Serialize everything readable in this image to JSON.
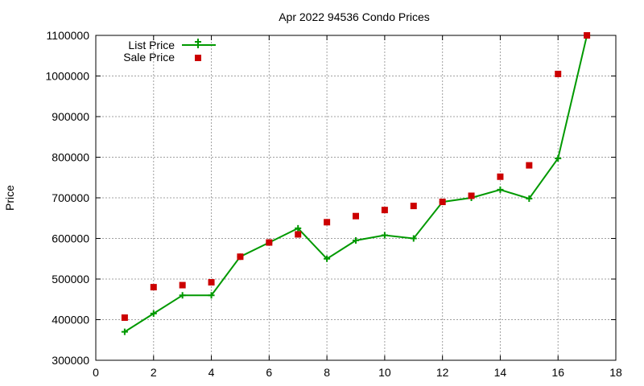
{
  "chart_data": {
    "type": "line",
    "title": "Apr 2022 94536 Condo Prices",
    "xlabel": "",
    "ylabel": "Price",
    "xlim": [
      0,
      18
    ],
    "ylim": [
      300000,
      1100000
    ],
    "xticks": [
      0,
      2,
      4,
      6,
      8,
      10,
      12,
      14,
      16,
      18
    ],
    "yticks": [
      300000,
      400000,
      500000,
      600000,
      700000,
      800000,
      900000,
      1000000,
      1100000
    ],
    "grid": true,
    "legend": "top-left",
    "series": [
      {
        "name": "List Price",
        "style": "line-with-plus-markers",
        "color": "#009900",
        "x": [
          1,
          2,
          3,
          4,
          5,
          6,
          7,
          8,
          9,
          10,
          11,
          12,
          13,
          14,
          15,
          16,
          17
        ],
        "values": [
          370000,
          415000,
          460000,
          460000,
          555000,
          590000,
          625000,
          550000,
          595000,
          608000,
          600000,
          690000,
          700000,
          720000,
          698000,
          797000,
          1100000
        ]
      },
      {
        "name": "Sale Price",
        "style": "square-markers",
        "color": "#cc0000",
        "x": [
          1,
          2,
          3,
          4,
          5,
          6,
          7,
          8,
          9,
          10,
          11,
          12,
          13,
          14,
          15,
          16,
          17
        ],
        "values": [
          405000,
          480000,
          485000,
          492000,
          555000,
          590000,
          610000,
          640000,
          655000,
          670000,
          680000,
          690000,
          705000,
          752000,
          780000,
          1005000,
          1100000
        ]
      }
    ]
  }
}
